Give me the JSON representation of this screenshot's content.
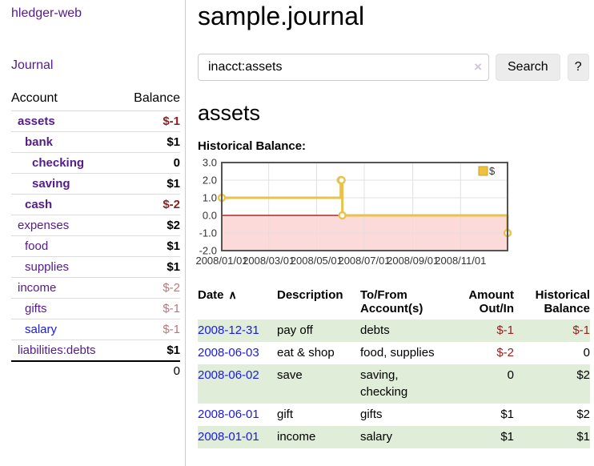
{
  "app": {
    "title": "hledger-web",
    "nav_journal": "Journal"
  },
  "sidebar": {
    "header": {
      "account": "Account",
      "balance": "Balance"
    },
    "accounts": [
      {
        "name": "assets",
        "level": 1,
        "bold": true,
        "balance": "$-1",
        "balance_class": "neg-strong"
      },
      {
        "name": "bank",
        "level": 2,
        "bold": true,
        "balance": "$1",
        "balance_class": "pos"
      },
      {
        "name": "checking",
        "level": 3,
        "bold": true,
        "balance": "0",
        "balance_class": "pos"
      },
      {
        "name": "saving",
        "level": 3,
        "bold": true,
        "balance": "$1",
        "balance_class": "pos"
      },
      {
        "name": "cash",
        "level": 2,
        "bold": true,
        "balance": "$-2",
        "balance_class": "neg-strong"
      },
      {
        "name": "expenses",
        "level": 1,
        "bold": false,
        "balance": "$2",
        "balance_class": "pos"
      },
      {
        "name": "food",
        "level": 2,
        "bold": false,
        "balance": "$1",
        "balance_class": "pos"
      },
      {
        "name": "supplies",
        "level": 2,
        "bold": false,
        "balance": "$1",
        "balance_class": "pos"
      },
      {
        "name": "income",
        "level": 1,
        "bold": false,
        "balance": "$-2",
        "balance_class": "neg-soft"
      },
      {
        "name": "gifts",
        "level": 2,
        "bold": false,
        "balance": "$-1",
        "balance_class": "neg-soft"
      },
      {
        "name": "salary",
        "level": 2,
        "bold": false,
        "link_style": "blue",
        "balance": "$-1",
        "balance_class": "neg-soft"
      },
      {
        "name": "liabilities:debts",
        "level": 1,
        "bold": false,
        "balance": "$1",
        "balance_class": "pos"
      }
    ],
    "total": "0"
  },
  "main": {
    "title": "sample.journal",
    "search": {
      "value": "inacct:assets",
      "clear_icon": "×",
      "button": "Search",
      "help_button": "?"
    },
    "account_heading": "assets",
    "chart_heading": "Historical Balance:"
  },
  "chart_data": {
    "type": "line",
    "title": "Historical Balance of assets",
    "step": true,
    "series": [
      {
        "name": "$",
        "points": [
          [
            "2008-01-01",
            1
          ],
          [
            "2008-06-01",
            2
          ],
          [
            "2008-06-02",
            2
          ],
          [
            "2008-06-03",
            0
          ],
          [
            "2008-12-31",
            -1
          ]
        ]
      }
    ],
    "x_range": [
      "2008-01-01",
      "2008-12-31"
    ],
    "x_ticks": [
      {
        "date": "2008-01-01",
        "label": "2008/01/01"
      },
      {
        "date": "2008-03-01",
        "label": "2008/03/01"
      },
      {
        "date": "2008-05-01",
        "label": "2008/05/01"
      },
      {
        "date": "2008-07-01",
        "label": "2008/07/01"
      },
      {
        "date": "2008-09-01",
        "label": "2008/09/01"
      },
      {
        "date": "2008-11-01",
        "label": "2008/11/01"
      }
    ],
    "y_ticks": [
      "3.0",
      "2.0",
      "1.0",
      "0.0",
      "-1.0",
      "-2.0"
    ],
    "ylim": [
      -2,
      3
    ],
    "grid": true,
    "legend": {
      "label": "$",
      "position": "top-right"
    },
    "colors": {
      "line": "#e8c24a",
      "marker_fill": "#ffffff",
      "legend_fill": "#edc240",
      "legend_border": "#c9a32e",
      "negative_region": "#fcdada",
      "zero_line": "#a00000",
      "gridline": "#e0e0e0",
      "plot_border": "#545454"
    }
  },
  "register": {
    "columns": [
      "Date",
      "Description",
      "To/From Account(s)",
      "Amount Out/In",
      "Historical Balance"
    ],
    "sort_icon_glyph": "∧",
    "rows": [
      {
        "date": "2008-12-31",
        "description": "pay off",
        "accounts": "debts",
        "amount": "$-1",
        "amount_neg": true,
        "balance": "$-1",
        "balance_neg": true
      },
      {
        "date": "2008-06-03",
        "description": "eat & shop",
        "accounts": "food, supplies",
        "amount": "$-2",
        "amount_neg": true,
        "balance": "0",
        "balance_neg": false
      },
      {
        "date": "2008-06-02",
        "description": "save",
        "accounts": "saving, checking",
        "amount": "0",
        "amount_neg": false,
        "balance": "$2",
        "balance_neg": false
      },
      {
        "date": "2008-06-01",
        "description": "gift",
        "accounts": "gifts",
        "amount": "$1",
        "amount_neg": false,
        "balance": "$2",
        "balance_neg": false
      },
      {
        "date": "2008-01-01",
        "description": "income",
        "accounts": "salary",
        "amount": "$1",
        "amount_neg": false,
        "balance": "$1",
        "balance_neg": false
      }
    ]
  }
}
